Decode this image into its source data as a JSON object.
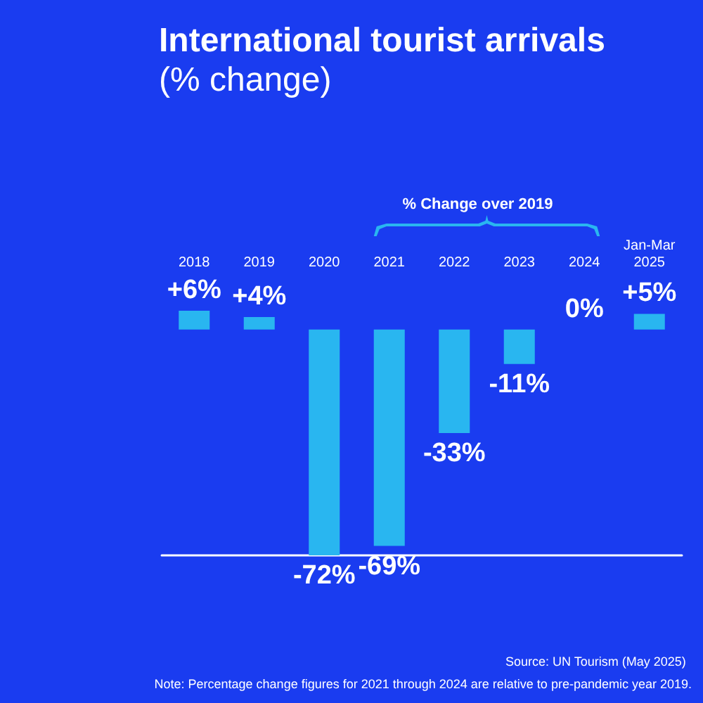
{
  "chart_data": {
    "type": "bar",
    "title": "International tourist arrivals",
    "subtitle": "(% change)",
    "categories": [
      "2018",
      "2019",
      "2020",
      "2021",
      "2022",
      "2023",
      "2024",
      "Jan-Mar\n2025"
    ],
    "values": [
      6,
      4,
      -72,
      -69,
      -33,
      -11,
      0,
      5
    ],
    "value_labels": [
      "+6%",
      "+4%",
      "-72%",
      "-69%",
      "-33%",
      "-11%",
      "0%",
      "+5%"
    ],
    "color": "#29b6f0",
    "annotations": [
      "% Change over 2019",
      "Source: UN Tourism (May 2025)",
      "Note: Percentage change figures for 2021 through 2024 are relative to pre-pandemic year 2019."
    ]
  }
}
